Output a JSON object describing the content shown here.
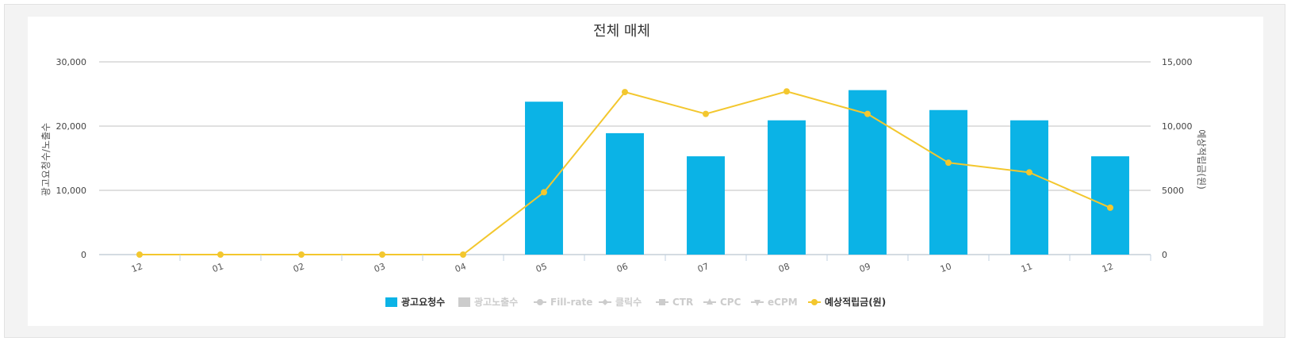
{
  "chart_data": {
    "type": "bar",
    "title": "전체 매체",
    "categories": [
      "12",
      "01",
      "02",
      "03",
      "04",
      "05",
      "06",
      "07",
      "08",
      "09",
      "10",
      "11",
      "12"
    ],
    "ylabel_left": "광고요청수/노출수",
    "ylabel_right": "예상적립금(원)",
    "ylim_left": [
      0,
      30000
    ],
    "ylim_right": [
      0,
      15000
    ],
    "yticks_left": [
      "0",
      "10,000",
      "20,000",
      "30,000"
    ],
    "yticks_right": [
      "0",
      "5000",
      "10,000",
      "15,000"
    ],
    "grid": true,
    "legend_position": "bottom",
    "series": [
      {
        "name": "광고요청수",
        "type": "bar",
        "axis": "left",
        "color": "#0bb3e6",
        "values": [
          0,
          0,
          0,
          0,
          0,
          23800,
          18900,
          15300,
          20900,
          25600,
          22500,
          20900,
          15300
        ]
      },
      {
        "name": "예상적립금(원)",
        "type": "line",
        "axis": "right",
        "color": "#f3c72e",
        "values": [
          0,
          0,
          0,
          0,
          0,
          4850,
          12650,
          10950,
          12700,
          10950,
          7150,
          6400,
          3650
        ]
      }
    ],
    "legend": [
      {
        "label": "광고요청수",
        "marker": "square",
        "active": true,
        "color": "#0bb3e6"
      },
      {
        "label": "광고노출수",
        "marker": "square",
        "active": false,
        "color": "#cccccc"
      },
      {
        "label": "Fill-rate",
        "marker": "line-circle",
        "active": false,
        "color": "#cccccc"
      },
      {
        "label": "클릭수",
        "marker": "line-diamond",
        "active": false,
        "color": "#cccccc"
      },
      {
        "label": "CTR",
        "marker": "line-square",
        "active": false,
        "color": "#cccccc"
      },
      {
        "label": "CPC",
        "marker": "line-triangle",
        "active": false,
        "color": "#cccccc"
      },
      {
        "label": "eCPM",
        "marker": "line-triangle-down",
        "active": false,
        "color": "#cccccc"
      },
      {
        "label": "예상적립금(원)",
        "marker": "line-circle",
        "active": true,
        "color": "#f3c72e"
      }
    ]
  }
}
